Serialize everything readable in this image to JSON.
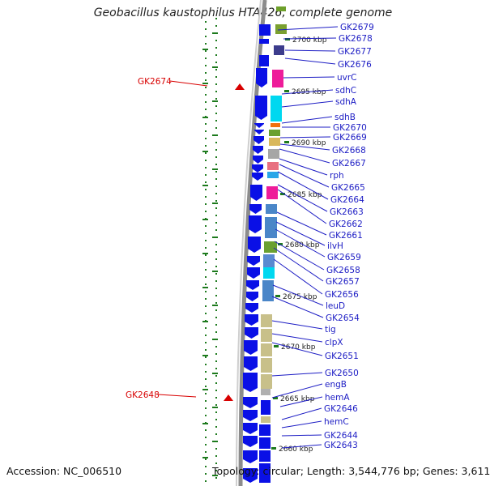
{
  "title": "Geobacillus kaustophilus HTA426, complete genome",
  "footer": {
    "accession": "Accession: NC_006510",
    "summary": "Topology: circular; Length: 3,544,776 bp; Genes: 3,611"
  },
  "colors": {
    "gene_label": "#1c1cc4",
    "marker": "#d80000",
    "arrow": "#0a10e6",
    "backbone": "#8c8c8c",
    "tick": "#1d7a1d"
  },
  "markers": [
    "GK2674",
    "GK2648"
  ],
  "kbp_marks": [
    "2700 kbp",
    "2695 kbp",
    "2690 kbp",
    "2685 kbp",
    "2680 kbp",
    "2675 kbp",
    "2670 kbp",
    "2665 kbp",
    "2660 kbp"
  ],
  "genes": [
    "GK2679",
    "GK2678",
    "GK2677",
    "GK2676",
    "uvrC",
    "sdhC",
    "sdhA",
    "sdhB",
    "GK2670",
    "GK2669",
    "GK2668",
    "GK2667",
    "rph",
    "GK2665",
    "GK2664",
    "GK2663",
    "GK2662",
    "GK2661",
    "ilvH",
    "GK2659",
    "GK2658",
    "GK2657",
    "GK2656",
    "leuD",
    "GK2654",
    "tig",
    "clpX",
    "GK2651",
    "GK2650",
    "engB",
    "hemA",
    "GK2646",
    "hemC",
    "GK2644",
    "GK2643"
  ]
}
